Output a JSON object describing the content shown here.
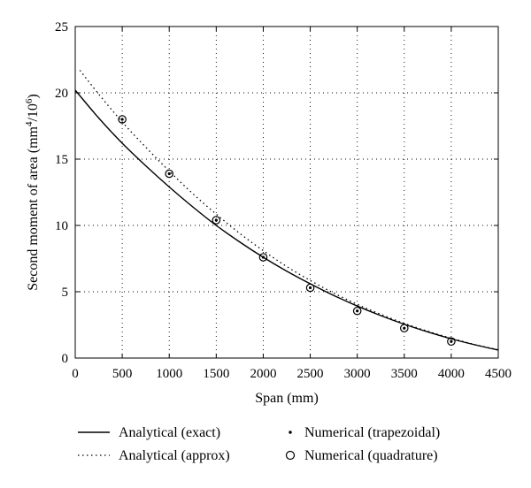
{
  "chart_data": {
    "type": "line",
    "xlabel": "Span (mm)",
    "ylabel": {
      "base": "Second moment of area (mm",
      "sup1": "4",
      "mid": "/10",
      "sup2": "6",
      "end": ")"
    },
    "xlim": [
      0,
      4500
    ],
    "ylim": [
      0,
      25
    ],
    "xticks": [
      0,
      500,
      1000,
      1500,
      2000,
      2500,
      3000,
      3500,
      4000,
      4500
    ],
    "yticks": [
      0,
      5,
      10,
      15,
      20,
      25
    ],
    "grid": true,
    "grid_style": "dotted",
    "legend_placement": "bottom, below plot, two columns",
    "series": [
      {
        "name": "Analytical (exact)",
        "style": "solid-line",
        "x": [
          0,
          250,
          500,
          750,
          1000,
          1250,
          1500,
          1750,
          2000,
          2250,
          2500,
          2750,
          3000,
          3250,
          3500,
          3750,
          4000,
          4250,
          4500
        ],
        "y": [
          20.2,
          18.1,
          16.2,
          14.5,
          12.9,
          11.4,
          10.0,
          8.75,
          7.6,
          6.55,
          5.6,
          4.72,
          3.92,
          3.2,
          2.55,
          1.97,
          1.45,
          1.0,
          0.6
        ]
      },
      {
        "name": "Analytical (approx)",
        "style": "dotted-line",
        "x": [
          50,
          250,
          500,
          750,
          1000,
          1250,
          1500,
          1750,
          2000,
          2250,
          2500,
          2750,
          3000,
          3250,
          3500,
          3750,
          4000,
          4250,
          4500
        ],
        "y": [
          21.7,
          19.9,
          17.8,
          15.9,
          14.1,
          12.4,
          10.85,
          9.4,
          8.1,
          6.9,
          5.85,
          4.9,
          4.05,
          3.3,
          2.62,
          2.02,
          1.5,
          1.02,
          0.62
        ]
      },
      {
        "name": "Numerical (trapezoidal)",
        "style": "dot",
        "x": [
          500,
          1000,
          1500,
          2000,
          2500,
          3000,
          3500,
          4000
        ],
        "y": [
          18.0,
          13.9,
          10.4,
          7.6,
          5.3,
          3.55,
          2.25,
          1.25
        ]
      },
      {
        "name": "Numerical (quadrature)",
        "style": "circle",
        "x": [
          500,
          1000,
          1500,
          2000,
          2500,
          3000,
          3500,
          4000
        ],
        "y": [
          18.0,
          13.9,
          10.4,
          7.6,
          5.3,
          3.55,
          2.25,
          1.25
        ]
      }
    ]
  }
}
